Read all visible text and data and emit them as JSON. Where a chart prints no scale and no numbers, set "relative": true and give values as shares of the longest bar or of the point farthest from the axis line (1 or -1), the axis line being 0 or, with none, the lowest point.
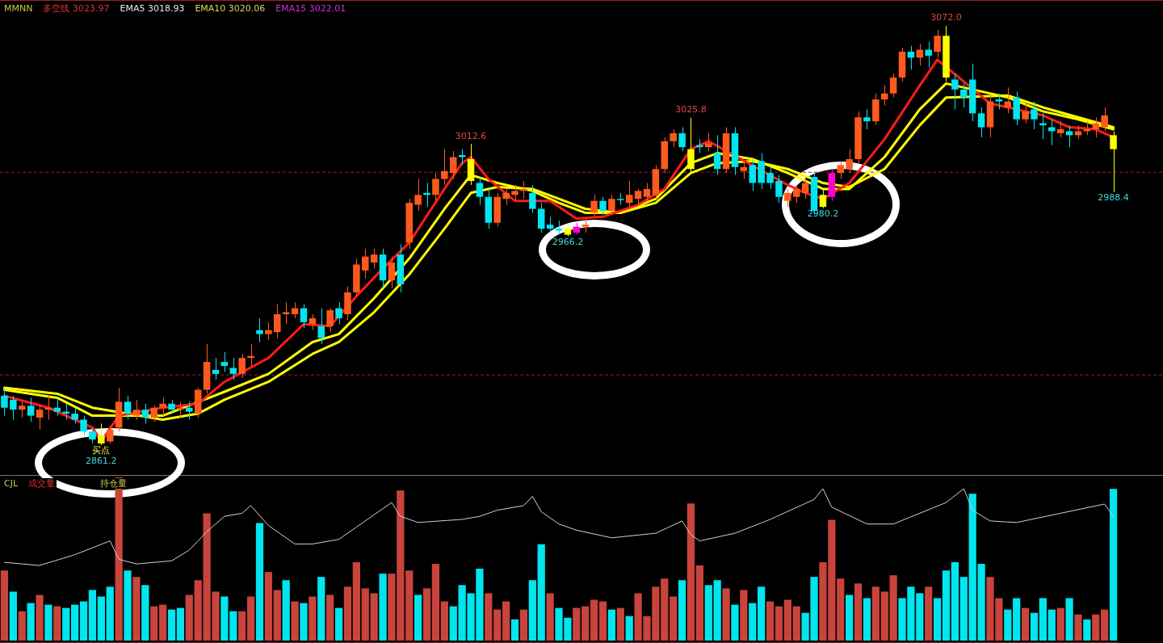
{
  "chart_data": [
    {
      "type": "candlestick",
      "categories": [
        null,
        null,
        null,
        null,
        null,
        null,
        null,
        null,
        null,
        null,
        null,
        null,
        null,
        null,
        null,
        null,
        null,
        null,
        null,
        null,
        null,
        null,
        null,
        null,
        null,
        null,
        null,
        null,
        null,
        null,
        null,
        null,
        null,
        null,
        null,
        null,
        null,
        null,
        null,
        null,
        null,
        null,
        null,
        null,
        null,
        null,
        null,
        null,
        null,
        null,
        null,
        null,
        null,
        null,
        null,
        null,
        null,
        null,
        null,
        null,
        null,
        null,
        null,
        null,
        null,
        null,
        null,
        null,
        null,
        null,
        null,
        null,
        null,
        null,
        null,
        null,
        null,
        null,
        null,
        null,
        null,
        null,
        null,
        null,
        null,
        null,
        null,
        null,
        null,
        null,
        null,
        null,
        null,
        null,
        null,
        null,
        null,
        null,
        null,
        null,
        null,
        null,
        null,
        null,
        null,
        null,
        null,
        null,
        null,
        null,
        null,
        null,
        null,
        null,
        null,
        null,
        null,
        null,
        null,
        null,
        null,
        null,
        null,
        null,
        null,
        null,
        null
      ],
      "ohlc": [
        [
          2886,
          2890,
          2876,
          2880
        ],
        [
          2884,
          2886,
          2874,
          2879
        ],
        [
          2879,
          2883,
          2875,
          2881
        ],
        [
          2881,
          2885,
          2873,
          2876
        ],
        [
          2875,
          2881,
          2869,
          2879
        ],
        [
          2879,
          2886,
          2874,
          2880
        ],
        [
          2880,
          2885,
          2876,
          2878
        ],
        [
          2878,
          2882,
          2874,
          2877
        ],
        [
          2877,
          2880,
          2872,
          2874
        ],
        [
          2874,
          2876,
          2866,
          2868
        ],
        [
          2868,
          2870,
          2862,
          2864
        ],
        [
          2866,
          2872,
          2861.2,
          2862
        ],
        [
          2863,
          2871,
          2862,
          2869
        ],
        [
          2870,
          2890,
          2868,
          2883
        ],
        [
          2883,
          2886,
          2874,
          2877
        ],
        [
          2876,
          2884,
          2874,
          2879
        ],
        [
          2879,
          2882,
          2872,
          2875
        ],
        [
          2875,
          2881,
          2873,
          2880
        ],
        [
          2880,
          2885,
          2876,
          2882
        ],
        [
          2882,
          2884,
          2877,
          2879
        ],
        [
          2879,
          2883,
          2875,
          2880
        ],
        [
          2880,
          2883,
          2874,
          2878
        ],
        [
          2877,
          2890,
          2875,
          2889
        ],
        [
          2889,
          2912,
          2887,
          2903
        ],
        [
          2899,
          2905,
          2894,
          2897
        ],
        [
          2903,
          2908,
          2898,
          2901
        ],
        [
          2900,
          2905,
          2894,
          2897
        ],
        [
          2897,
          2907,
          2895,
          2905
        ],
        [
          2905,
          2912,
          2901,
          2906
        ],
        [
          2919,
          2925,
          2913,
          2917
        ],
        [
          2917,
          2923,
          2914,
          2919
        ],
        [
          2918,
          2932,
          2915,
          2927
        ],
        [
          2927,
          2933,
          2922,
          2928
        ],
        [
          2927,
          2933,
          2925,
          2930
        ],
        [
          2930,
          2932,
          2920,
          2923
        ],
        [
          2922,
          2927,
          2919,
          2925
        ],
        [
          2921,
          2930,
          2912,
          2915
        ],
        [
          2921,
          2930,
          2918,
          2929
        ],
        [
          2930,
          2933,
          2922,
          2925
        ],
        [
          2927,
          2941,
          2924,
          2938
        ],
        [
          2938,
          2955,
          2936,
          2952
        ],
        [
          2949,
          2960,
          2945,
          2956
        ],
        [
          2953,
          2960,
          2950,
          2957
        ],
        [
          2957,
          2960,
          2940,
          2944
        ],
        [
          2944,
          2956,
          2940,
          2953
        ],
        [
          2957,
          2962,
          2938,
          2942
        ],
        [
          2963,
          2985,
          2960,
          2983
        ],
        [
          2982,
          2995,
          2979,
          2987
        ],
        [
          2988,
          2993,
          2981,
          2987
        ],
        [
          2987,
          2998,
          2984,
          2995
        ],
        [
          2995,
          3010,
          2992,
          2999
        ],
        [
          2998,
          3009,
          2995,
          3006
        ],
        [
          3007,
          3010,
          3002,
          3006
        ],
        [
          3005,
          3012.6,
          2992,
          2994
        ],
        [
          2993,
          2996,
          2982,
          2986
        ],
        [
          2986,
          2990,
          2970,
          2973
        ],
        [
          2973,
          2988,
          2971,
          2986
        ],
        [
          2985,
          2990,
          2982,
          2988
        ],
        [
          2987,
          2992,
          2984,
          2989
        ],
        [
          2989,
          2994,
          2985,
          2990
        ],
        [
          2988,
          2992,
          2978,
          2980
        ],
        [
          2980,
          2983,
          2968,
          2970
        ],
        [
          2972,
          2976,
          2968,
          2970
        ],
        [
          2970,
          2974,
          2967,
          2969
        ],
        [
          2970,
          2972,
          2966.2,
          2967
        ],
        [
          2968,
          2973,
          2967,
          2971
        ],
        [
          2971,
          2975,
          2968,
          2972
        ],
        [
          2978,
          2987,
          2976,
          2984
        ],
        [
          2984,
          2986,
          2977,
          2979
        ],
        [
          2979,
          2987,
          2977,
          2985
        ],
        [
          2985,
          2988,
          2982,
          2985
        ],
        [
          2983,
          2994,
          2981,
          2987
        ],
        [
          2985,
          2990,
          2982,
          2989
        ],
        [
          2986,
          2993,
          2984,
          2990
        ],
        [
          2987,
          3002,
          2985,
          3000
        ],
        [
          3000,
          3016,
          2998,
          3014
        ],
        [
          3014,
          3020,
          3011,
          3018
        ],
        [
          3018,
          3021,
          3009,
          3011
        ],
        [
          3010,
          3025.8,
          2998,
          3000
        ],
        [
          3012,
          3015,
          3008,
          3011
        ],
        [
          3011,
          3018,
          3009,
          3013
        ],
        [
          3008,
          3017,
          2997,
          3000
        ],
        [
          3000,
          3021,
          2998,
          3018
        ],
        [
          3018,
          3021,
          2997,
          3001
        ],
        [
          2999,
          3004,
          2995,
          3001
        ],
        [
          3002,
          3005,
          2989,
          2993
        ],
        [
          3004,
          3008,
          2990,
          2993
        ],
        [
          2998,
          3001,
          2990,
          2993
        ],
        [
          2994,
          2997,
          2983,
          2986
        ],
        [
          2984,
          2990,
          2981,
          2988
        ],
        [
          2986,
          2992,
          2983,
          2990
        ],
        [
          2988,
          2996,
          2985,
          2993
        ],
        [
          2996,
          2998,
          2977,
          2979
        ],
        [
          2987,
          2990,
          2980.2,
          2981
        ],
        [
          2986,
          3000,
          2984,
          2998
        ],
        [
          2998,
          3004,
          2995,
          3002
        ],
        [
          3000,
          3010,
          2998,
          3005
        ],
        [
          3005,
          3029,
          3003,
          3026
        ],
        [
          3026,
          3030,
          3020,
          3024
        ],
        [
          3024,
          3038,
          3022,
          3035
        ],
        [
          3035,
          3042,
          3032,
          3038
        ],
        [
          3038,
          3048,
          3036,
          3046
        ],
        [
          3046,
          3061,
          3044,
          3059
        ],
        [
          3059,
          3062,
          3050,
          3056
        ],
        [
          3056,
          3063,
          3052,
          3060
        ],
        [
          3060,
          3064,
          3051,
          3057
        ],
        [
          3059,
          3070,
          3056,
          3067
        ],
        [
          3067,
          3072.0,
          3044,
          3046
        ],
        [
          3045,
          3048,
          3030,
          3040
        ],
        [
          3040,
          3043,
          3031,
          3036
        ],
        [
          3045,
          3053,
          3024,
          3028
        ],
        [
          3028,
          3031,
          3016,
          3021
        ],
        [
          3021,
          3037,
          3016,
          3034
        ],
        [
          3035,
          3038,
          3030,
          3034
        ],
        [
          3031,
          3041,
          3028,
          3034
        ],
        [
          3036,
          3039,
          3022,
          3025
        ],
        [
          3025,
          3033,
          3023,
          3029
        ],
        [
          3030,
          3034,
          3020,
          3025
        ],
        [
          3023,
          3028,
          3015,
          3022
        ],
        [
          3021,
          3025,
          3012,
          3019
        ],
        [
          3018,
          3024,
          3016,
          3020
        ],
        [
          3019,
          3022,
          3011,
          3017
        ],
        [
          3017,
          3022,
          3015,
          3019
        ],
        [
          3019,
          3024,
          3017,
          3020
        ],
        [
          3020,
          3026,
          3016,
          3023
        ],
        [
          3021,
          3031,
          3019,
          3027
        ],
        [
          3017,
          3019,
          2988.4,
          3010
        ]
      ],
      "colors": [
        "#00e5ee",
        "#00e5ee",
        "#ff5a1e",
        "#00e5ee",
        "#ff5a1e",
        "#ff5a1e",
        "#00e5ee",
        "#00e5ee",
        "#00e5ee",
        "#00e5ee",
        "#00e5ee",
        "#ffff00",
        "#ff5a1e",
        "#ff5a1e",
        "#00e5ee",
        "#ff5a1e",
        "#00e5ee",
        "#ff5a1e",
        "#ff5a1e",
        "#00e5ee",
        "#ff5a1e",
        "#00e5ee",
        "#ff5a1e",
        "#ff5a1e",
        "#00e5ee",
        "#00e5ee",
        "#00e5ee",
        "#ff5a1e",
        "#ff5a1e",
        "#00e5ee",
        "#ff5a1e",
        "#ff5a1e",
        "#ff5a1e",
        "#ff5a1e",
        "#00e5ee",
        "#ff5a1e",
        "#00e5ee",
        "#ff5a1e",
        "#00e5ee",
        "#ff5a1e",
        "#ff5a1e",
        "#ff5a1e",
        "#ff5a1e",
        "#00e5ee",
        "#ff5a1e",
        "#00e5ee",
        "#ff5a1e",
        "#ff5a1e",
        "#00e5ee",
        "#ff5a1e",
        "#ff5a1e",
        "#ff5a1e",
        "#00e5ee",
        "#ffff00",
        "#00e5ee",
        "#00e5ee",
        "#ff5a1e",
        "#ff5a1e",
        "#ff5a1e",
        "#ff5a1e",
        "#00e5ee",
        "#00e5ee",
        "#00e5ee",
        "#00e5ee",
        "#ffff00",
        "#ff00d0",
        "#ff5a1e",
        "#ff5a1e",
        "#00e5ee",
        "#ff5a1e",
        "#00e5ee",
        "#ff5a1e",
        "#ff5a1e",
        "#ff5a1e",
        "#ff5a1e",
        "#ff5a1e",
        "#ff5a1e",
        "#00e5ee",
        "#ffff00",
        "#00e5ee",
        "#ff5a1e",
        "#00e5ee",
        "#ff5a1e",
        "#00e5ee",
        "#ff5a1e",
        "#00e5ee",
        "#00e5ee",
        "#00e5ee",
        "#00e5ee",
        "#ff5a1e",
        "#ff5a1e",
        "#ff5a1e",
        "#00e5ee",
        "#ffff00",
        "#ff00d0",
        "#ff5a1e",
        "#ff5a1e",
        "#ff5a1e",
        "#00e5ee",
        "#ff5a1e",
        "#ff5a1e",
        "#ff5a1e",
        "#ff5a1e",
        "#00e5ee",
        "#ff5a1e",
        "#00e5ee",
        "#ff5a1e",
        "#ffff00",
        "#00e5ee",
        "#00e5ee",
        "#00e5ee",
        "#00e5ee",
        "#ff5a1e",
        "#00e5ee",
        "#ff5a1e",
        "#00e5ee",
        "#ff5a1e",
        "#00e5ee",
        "#00e5ee",
        "#00e5ee",
        "#ff5a1e",
        "#00e5ee",
        "#ff5a1e",
        "#ff5a1e",
        "#ff5a1e",
        "#ff5a1e",
        "#ffff00"
      ],
      "series": [
        {
          "type": "line",
          "color": "#ff1a1a",
          "values": [
            2886,
            null,
            null,
            null,
            null,
            2880,
            null,
            null,
            null,
            null,
            2870,
            2863,
            null,
            2876,
            null,
            null,
            null,
            null,
            2880,
            null,
            null,
            null,
            2882,
            null,
            null,
            2893,
            null,
            null,
            null,
            null,
            2905,
            null,
            null,
            null,
            2922,
            null,
            null,
            2921,
            null,
            null,
            2936,
            null,
            null,
            2950,
            null,
            null,
            2963,
            null,
            null,
            null,
            2990,
            null,
            3003,
            3006,
            null,
            2995,
            null,
            null,
            2984,
            null,
            null,
            null,
            2984,
            null,
            null,
            2975,
            null,
            null,
            2976,
            null,
            null,
            null,
            2982,
            null,
            null,
            2990,
            null,
            null,
            3010,
            null,
            3014,
            null,
            null,
            null,
            null,
            null,
            null,
            null,
            null,
            2992,
            null,
            2988,
            null,
            2985,
            null,
            null,
            2993,
            null,
            null,
            null,
            3015,
            null,
            null,
            null,
            3042,
            null,
            3055,
            null,
            null,
            null,
            null,
            null,
            3033,
            null,
            null,
            null,
            null,
            null,
            3027,
            null,
            null,
            3021,
            null,
            null,
            3020,
            null,
            3016
          ]
        },
        {
          "type": "line",
          "color": "#ffff00",
          "values": [
            2889,
            null,
            null,
            null,
            null,
            null,
            2885,
            null,
            null,
            null,
            2876,
            null,
            null,
            null,
            null,
            null,
            null,
            null,
            2876,
            null,
            null,
            null,
            null,
            null,
            null,
            2888,
            null,
            null,
            null,
            null,
            2897,
            null,
            null,
            null,
            null,
            2913,
            null,
            null,
            2917,
            null,
            null,
            null,
            2935,
            null,
            null,
            null,
            2955,
            null,
            null,
            null,
            2980,
            null,
            null,
            2997,
            null,
            null,
            2993,
            null,
            null,
            null,
            2989,
            null,
            null,
            2983,
            null,
            null,
            2978,
            null,
            null,
            null,
            2978,
            null,
            null,
            null,
            2985,
            null,
            null,
            null,
            3003,
            null,
            null,
            3008,
            null,
            null,
            null,
            3005,
            null,
            null,
            null,
            2998,
            null,
            null,
            null,
            2990,
            null,
            null,
            2990,
            null,
            null,
            null,
            3006,
            null,
            null,
            null,
            3030,
            null,
            null,
            3043,
            null,
            null,
            null,
            null,
            null,
            null,
            3036,
            null,
            null,
            null,
            3029,
            null,
            null,
            null,
            3025,
            null,
            null,
            null,
            3020
          ]
        },
        {
          "type": "line",
          "color": "#ffff00",
          "values": [
            2890,
            null,
            null,
            null,
            null,
            null,
            2887,
            null,
            null,
            null,
            2880,
            null,
            null,
            null,
            null,
            null,
            null,
            null,
            2874,
            null,
            null,
            null,
            2877,
            null,
            null,
            2884,
            null,
            null,
            null,
            null,
            2893,
            null,
            null,
            null,
            null,
            2907,
            null,
            null,
            2913,
            null,
            null,
            null,
            2928,
            null,
            null,
            null,
            2947,
            null,
            null,
            null,
            2970,
            null,
            null,
            2988,
            null,
            null,
            2991,
            null,
            null,
            null,
            2990,
            null,
            null,
            2985,
            null,
            null,
            2980,
            null,
            null,
            null,
            2978,
            null,
            null,
            null,
            2983,
            null,
            null,
            null,
            2998,
            null,
            null,
            3003,
            null,
            null,
            null,
            3004,
            null,
            null,
            null,
            3000,
            null,
            null,
            null,
            2993,
            null,
            null,
            2991,
            null,
            null,
            null,
            3000,
            null,
            null,
            null,
            3022,
            null,
            null,
            3036,
            null,
            null,
            null,
            null,
            null,
            null,
            3037,
            null,
            null,
            null,
            3031,
            null,
            null,
            null,
            3026,
            null,
            null,
            null,
            3021
          ]
        }
      ],
      "ref_lines": [
        {
          "axis": "y",
          "value": 2998.4,
          "color": "#a02020",
          "line_style": "dashed"
        },
        {
          "axis": "y",
          "value": 2896.5,
          "color": "#a02020",
          "line_style": "dashed"
        }
      ],
      "annotations": [
        "MMNN",
        "多空线 3023.97",
        "EMA5 3018.93",
        "EMA10 3020.06",
        "EMA15 3022.01",
        {
          "text": "买点",
          "y": 2861.2
        },
        {
          "text": "2861.2",
          "y": 2861.2
        },
        {
          "text": "3012.6",
          "y": 3012.6
        },
        {
          "text": "2966.2",
          "y": 2966.2
        },
        {
          "text": "3025.8",
          "y": 3025.8
        },
        {
          "text": "2980.2",
          "y": 2980.2
        },
        {
          "text": "3072.0",
          "y": 3072.0
        },
        {
          "text": "2988.4",
          "y": 2988.4
        }
      ]
    },
    {
      "type": "bar",
      "relative": true,
      "categories": [
        null,
        null,
        null,
        null,
        null,
        null,
        null,
        null,
        null,
        null,
        null,
        null,
        null,
        null,
        null,
        null,
        null,
        null,
        null,
        null,
        null,
        null,
        null,
        null,
        null,
        null,
        null,
        null,
        null,
        null,
        null,
        null,
        null,
        null,
        null,
        null,
        null,
        null,
        null,
        null,
        null,
        null,
        null,
        null,
        null,
        null,
        null,
        null,
        null,
        null,
        null,
        null,
        null,
        null,
        null,
        null,
        null,
        null,
        null,
        null,
        null,
        null,
        null,
        null,
        null,
        null,
        null,
        null,
        null,
        null,
        null,
        null,
        null,
        null,
        null,
        null,
        null,
        null,
        null,
        null,
        null,
        null,
        null,
        null,
        null,
        null,
        null,
        null,
        null,
        null,
        null,
        null,
        null,
        null,
        null,
        null,
        null,
        null,
        null,
        null,
        null,
        null,
        null,
        null,
        null,
        null,
        null,
        null,
        null,
        null,
        null,
        null,
        null,
        null,
        null,
        null,
        null,
        null,
        null,
        null,
        null,
        null,
        null,
        null,
        null,
        null,
        null
      ],
      "series": [
        {
          "type": "bar",
          "values": [
            0.43,
            0.3,
            0.18,
            0.23,
            0.28,
            0.22,
            0.21,
            0.2,
            0.22,
            0.24,
            0.31,
            0.27,
            0.33,
            1.0,
            0.43,
            0.39,
            0.34,
            0.21,
            0.22,
            0.19,
            0.2,
            0.28,
            0.37,
            0.78,
            0.3,
            0.27,
            0.18,
            0.18,
            0.27,
            0.72,
            0.42,
            0.31,
            0.37,
            0.24,
            0.23,
            0.27,
            0.39,
            0.28,
            0.2,
            0.33,
            0.48,
            0.32,
            0.29,
            0.41,
            0.41,
            0.92,
            0.43,
            0.28,
            0.32,
            0.47,
            0.24,
            0.21,
            0.34,
            0.29,
            0.44,
            0.29,
            0.19,
            0.24,
            0.13,
            0.19,
            0.37,
            0.59,
            0.29,
            0.2,
            0.14,
            0.2,
            0.21,
            0.25,
            0.24,
            0.19,
            0.2,
            0.15,
            0.29,
            0.15,
            0.33,
            0.38,
            0.27,
            0.37,
            0.84,
            0.46,
            0.34,
            0.37,
            0.32,
            0.22,
            0.31,
            0.23,
            0.33,
            0.24,
            0.21,
            0.25,
            0.21,
            0.17,
            0.39,
            0.48,
            0.74,
            0.38,
            0.28,
            0.35,
            0.26,
            0.33,
            0.3,
            0.4,
            0.26,
            0.33,
            0.29,
            0.33,
            0.26,
            0.43,
            0.48,
            0.39,
            0.9,
            0.47,
            0.39,
            0.26,
            0.19,
            0.26,
            0.2,
            0.17,
            0.26,
            0.19,
            0.2,
            0.26,
            0.16,
            0.13,
            0.16,
            0.19,
            0.93
          ],
          "colors": [
            "#c8443c",
            "#00e5ee",
            "#c8443c",
            "#00e5ee",
            "#c8443c",
            "#00e5ee",
            "#c8443c",
            "#00e5ee",
            "#00e5ee",
            "#00e5ee",
            "#00e5ee",
            "#00e5ee",
            "#00e5ee",
            "#c8443c",
            "#00e5ee",
            "#c8443c",
            "#00e5ee",
            "#c8443c",
            "#c8443c",
            "#00e5ee",
            "#00e5ee",
            "#c8443c",
            "#c8443c",
            "#c8443c",
            "#c8443c",
            "#00e5ee",
            "#00e5ee",
            "#c8443c",
            "#c8443c",
            "#00e5ee",
            "#c8443c",
            "#c8443c",
            "#00e5ee",
            "#c8443c",
            "#00e5ee",
            "#c8443c",
            "#00e5ee",
            "#c8443c",
            "#00e5ee",
            "#c8443c",
            "#c8443c",
            "#c8443c",
            "#c8443c",
            "#00e5ee",
            "#c8443c",
            "#c8443c",
            "#c8443c",
            "#00e5ee",
            "#c8443c",
            "#c8443c",
            "#c8443c",
            "#00e5ee",
            "#00e5ee",
            "#00e5ee",
            "#00e5ee",
            "#c8443c",
            "#c8443c",
            "#c8443c",
            "#00e5ee",
            "#c8443c",
            "#00e5ee",
            "#00e5ee",
            "#c8443c",
            "#00e5ee",
            "#00e5ee",
            "#c8443c",
            "#c8443c",
            "#c8443c",
            "#c8443c",
            "#00e5ee",
            "#c8443c",
            "#00e5ee",
            "#c8443c",
            "#c8443c",
            "#c8443c",
            "#c8443c",
            "#c8443c",
            "#00e5ee",
            "#c8443c",
            "#c8443c",
            "#00e5ee",
            "#00e5ee",
            "#c8443c",
            "#00e5ee",
            "#c8443c",
            "#00e5ee",
            "#00e5ee",
            "#c8443c",
            "#c8443c",
            "#c8443c",
            "#c8443c",
            "#00e5ee",
            "#00e5ee",
            "#c8443c",
            "#c8443c",
            "#c8443c",
            "#00e5ee",
            "#c8443c",
            "#00e5ee",
            "#c8443c",
            "#c8443c",
            "#c8443c",
            "#00e5ee",
            "#00e5ee",
            "#00e5ee",
            "#c8443c",
            "#00e5ee",
            "#00e5ee",
            "#00e5ee",
            "#00e5ee",
            "#00e5ee",
            "#00e5ee",
            "#c8443c",
            "#c8443c",
            "#00e5ee",
            "#00e5ee",
            "#c8443c",
            "#00e5ee",
            "#00e5ee",
            "#00e5ee",
            "#c8443c",
            "#00e5ee",
            "#c8443c",
            "#00e5ee",
            "#c8443c",
            "#c8443c",
            "#00e5ee"
          ]
        }
      ],
      "annotations": [
        "CJL",
        "成交量"
      ]
    },
    {
      "type": "line",
      "relative": true,
      "categories": [
        null,
        null,
        null,
        null,
        null,
        null,
        null,
        null,
        null,
        null,
        null,
        null,
        null,
        null,
        null,
        null,
        null,
        null,
        null,
        null,
        null,
        null,
        null,
        null,
        null,
        null,
        null,
        null,
        null,
        null,
        null,
        null,
        null,
        null,
        null,
        null,
        null,
        null,
        null,
        null,
        null,
        null,
        null,
        null,
        null,
        null,
        null,
        null,
        null,
        null,
        null,
        null,
        null,
        null,
        null,
        null,
        null,
        null,
        null,
        null,
        null,
        null,
        null,
        null,
        null,
        null,
        null,
        null,
        null,
        null,
        null,
        null,
        null,
        null,
        null,
        null,
        null,
        null,
        null,
        null,
        null,
        null,
        null,
        null,
        null,
        null,
        null,
        null,
        null,
        null,
        null,
        null,
        null,
        null,
        null,
        null,
        null,
        null,
        null,
        null,
        null,
        null,
        null,
        null,
        null,
        null,
        null,
        null,
        null,
        null,
        null,
        null,
        null,
        null,
        null,
        null,
        null,
        null,
        null,
        null,
        null,
        null,
        null,
        null,
        null,
        null,
        null
      ],
      "series": [
        {
          "type": "line",
          "color": "#d0d0d0",
          "values": [
            0.52,
            null,
            null,
            null,
            0.5,
            null,
            null,
            null,
            0.57,
            null,
            null,
            null,
            0.66,
            0.54,
            null,
            0.51,
            null,
            null,
            null,
            0.53,
            null,
            0.6,
            null,
            0.72,
            null,
            0.82,
            null,
            0.84,
            0.89,
            null,
            0.76,
            null,
            null,
            0.64,
            null,
            0.64,
            null,
            null,
            0.67,
            null,
            0.75,
            null,
            null,
            null,
            0.91,
            0.82,
            null,
            0.78,
            null,
            null,
            null,
            null,
            0.8,
            null,
            0.82,
            null,
            0.86,
            null,
            null,
            0.89,
            0.95,
            0.85,
            null,
            0.77,
            null,
            0.73,
            null,
            null,
            null,
            0.68,
            null,
            null,
            null,
            null,
            0.71,
            null,
            null,
            0.79,
            0.7,
            0.66,
            null,
            null,
            null,
            0.71,
            null,
            null,
            null,
            0.8,
            null,
            null,
            null,
            null,
            0.93,
            1.0,
            0.88,
            null,
            null,
            null,
            0.77,
            null,
            null,
            0.77,
            null,
            null,
            null,
            null,
            null,
            0.91,
            null,
            1.0,
            0.86,
            null,
            0.79,
            null,
            null,
            0.78,
            null,
            null,
            null,
            null,
            0.84,
            null,
            null,
            null,
            null,
            0.9,
            0.82
          ]
        }
      ],
      "annotations": [
        "持仓量"
      ]
    }
  ]
}
